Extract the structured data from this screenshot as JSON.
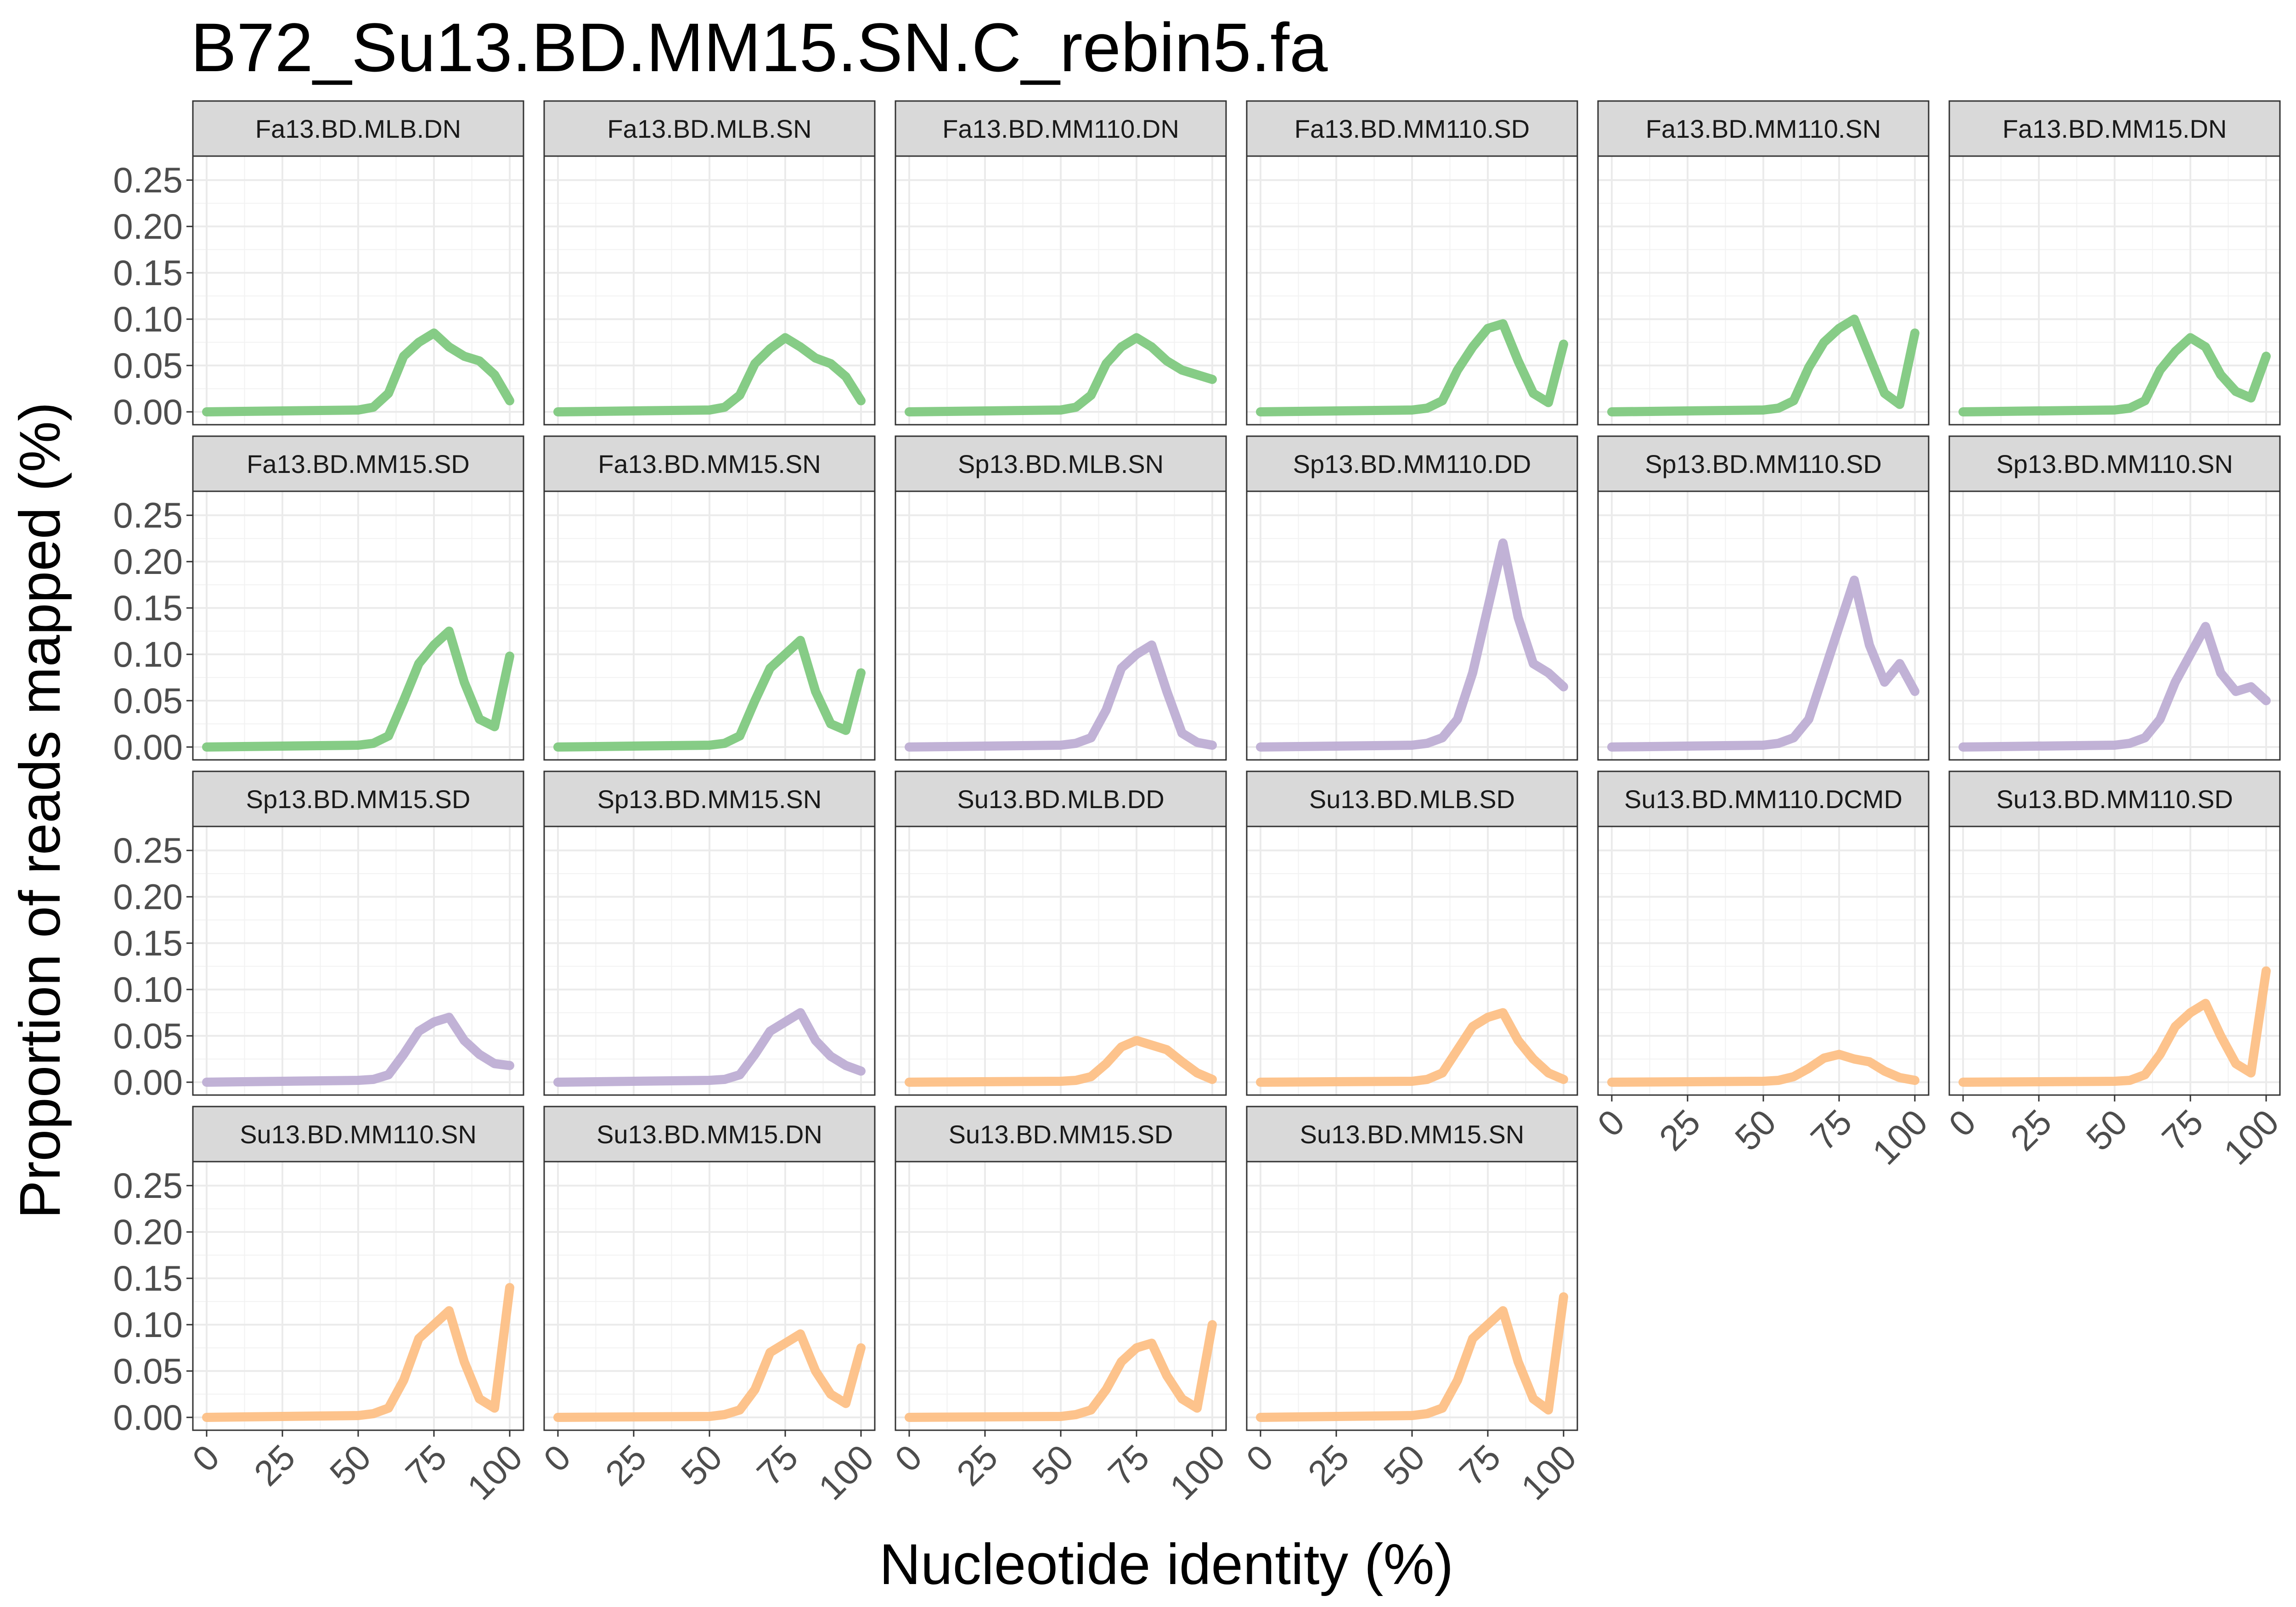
{
  "chart_data": {
    "type": "line",
    "title": "B72_Su13.BD.MM15.SN.C_rebin5.fa",
    "xlabel": "Nucleotide identity (%)",
    "ylabel": "Proportion of reads mapped (%)",
    "xlim": [
      0,
      100
    ],
    "ylim": [
      0,
      0.25
    ],
    "x_ticks": [
      "0",
      "25",
      "50",
      "75",
      "100"
    ],
    "y_ticks": [
      "0.00",
      "0.05",
      "0.10",
      "0.15",
      "0.20",
      "0.25"
    ],
    "grid": true,
    "legend": "none",
    "layout": "facet_wrap, 6 columns",
    "colors": {
      "Fa13": "#7fc97f",
      "Sp13": "#beaed4",
      "Su13": "#fdc086"
    },
    "x": [
      0,
      50,
      55,
      60,
      65,
      70,
      75,
      80,
      85,
      90,
      95,
      100
    ],
    "panels": [
      {
        "name": "Fa13.BD.MLB.DN",
        "group": "Fa13",
        "values": [
          0,
          0.002,
          0.005,
          0.02,
          0.06,
          0.075,
          0.085,
          0.07,
          0.06,
          0.055,
          0.04,
          0.012
        ]
      },
      {
        "name": "Fa13.BD.MLB.SN",
        "group": "Fa13",
        "values": [
          0,
          0.002,
          0.005,
          0.018,
          0.052,
          0.068,
          0.08,
          0.07,
          0.058,
          0.052,
          0.038,
          0.012
        ]
      },
      {
        "name": "Fa13.BD.MM110.DN",
        "group": "Fa13",
        "values": [
          0,
          0.002,
          0.005,
          0.018,
          0.052,
          0.07,
          0.08,
          0.07,
          0.055,
          0.045,
          0.04,
          0.035
        ]
      },
      {
        "name": "Fa13.BD.MM110.SD",
        "group": "Fa13",
        "values": [
          0,
          0.002,
          0.004,
          0.012,
          0.045,
          0.07,
          0.09,
          0.095,
          0.055,
          0.02,
          0.01,
          0.073
        ]
      },
      {
        "name": "Fa13.BD.MM110.SN",
        "group": "Fa13",
        "values": [
          0,
          0.002,
          0.004,
          0.012,
          0.048,
          0.075,
          0.09,
          0.1,
          0.06,
          0.02,
          0.008,
          0.085
        ]
      },
      {
        "name": "Fa13.BD.MM15.DN",
        "group": "Fa13",
        "values": [
          0,
          0.002,
          0.004,
          0.012,
          0.045,
          0.065,
          0.08,
          0.07,
          0.04,
          0.022,
          0.015,
          0.06
        ]
      },
      {
        "name": "Fa13.BD.MM15.SD",
        "group": "Fa13",
        "values": [
          0,
          0.002,
          0.004,
          0.012,
          0.05,
          0.09,
          0.11,
          0.125,
          0.07,
          0.03,
          0.022,
          0.098
        ]
      },
      {
        "name": "Fa13.BD.MM15.SN",
        "group": "Fa13",
        "values": [
          0,
          0.002,
          0.004,
          0.012,
          0.05,
          0.085,
          0.1,
          0.115,
          0.06,
          0.025,
          0.018,
          0.08
        ]
      },
      {
        "name": "Sp13.BD.MLB.SN",
        "group": "Sp13",
        "values": [
          0,
          0.002,
          0.004,
          0.01,
          0.04,
          0.085,
          0.1,
          0.11,
          0.06,
          0.015,
          0.005,
          0.002
        ]
      },
      {
        "name": "Sp13.BD.MM110.DD",
        "group": "Sp13",
        "values": [
          0,
          0.002,
          0.004,
          0.01,
          0.03,
          0.08,
          0.15,
          0.22,
          0.14,
          0.09,
          0.08,
          0.065
        ]
      },
      {
        "name": "Sp13.BD.MM110.SD",
        "group": "Sp13",
        "values": [
          0,
          0.002,
          0.004,
          0.01,
          0.03,
          0.08,
          0.13,
          0.18,
          0.11,
          0.07,
          0.09,
          0.06
        ]
      },
      {
        "name": "Sp13.BD.MM110.SN",
        "group": "Sp13",
        "values": [
          0,
          0.002,
          0.004,
          0.01,
          0.03,
          0.07,
          0.1,
          0.13,
          0.08,
          0.06,
          0.065,
          0.05
        ]
      },
      {
        "name": "Sp13.BD.MM15.SD",
        "group": "Sp13",
        "values": [
          0,
          0.002,
          0.003,
          0.008,
          0.03,
          0.055,
          0.065,
          0.07,
          0.045,
          0.03,
          0.02,
          0.018
        ]
      },
      {
        "name": "Sp13.BD.MM15.SN",
        "group": "Sp13",
        "values": [
          0,
          0.002,
          0.003,
          0.008,
          0.03,
          0.055,
          0.065,
          0.075,
          0.045,
          0.028,
          0.018,
          0.012
        ]
      },
      {
        "name": "Su13.BD.MLB.DD",
        "group": "Su13",
        "values": [
          0,
          0.001,
          0.002,
          0.006,
          0.02,
          0.038,
          0.045,
          0.04,
          0.035,
          0.022,
          0.01,
          0.003
        ]
      },
      {
        "name": "Su13.BD.MLB.SD",
        "group": "Su13",
        "values": [
          0,
          0.001,
          0.003,
          0.01,
          0.035,
          0.06,
          0.07,
          0.075,
          0.045,
          0.025,
          0.01,
          0.003
        ]
      },
      {
        "name": "Su13.BD.MM110.DCMD",
        "group": "Su13",
        "values": [
          0,
          0.001,
          0.002,
          0.006,
          0.015,
          0.026,
          0.03,
          0.025,
          0.022,
          0.012,
          0.005,
          0.002
        ]
      },
      {
        "name": "Su13.BD.MM110.SD",
        "group": "Su13",
        "values": [
          0,
          0.001,
          0.002,
          0.008,
          0.03,
          0.06,
          0.075,
          0.085,
          0.05,
          0.02,
          0.01,
          0.12
        ]
      },
      {
        "name": "Su13.BD.MM110.SN",
        "group": "Su13",
        "values": [
          0,
          0.002,
          0.004,
          0.01,
          0.04,
          0.085,
          0.1,
          0.115,
          0.06,
          0.02,
          0.01,
          0.14
        ]
      },
      {
        "name": "Su13.BD.MM15.DN",
        "group": "Su13",
        "values": [
          0,
          0.001,
          0.003,
          0.008,
          0.03,
          0.07,
          0.08,
          0.09,
          0.05,
          0.025,
          0.015,
          0.075
        ]
      },
      {
        "name": "Su13.BD.MM15.SD",
        "group": "Su13",
        "values": [
          0,
          0.001,
          0.003,
          0.008,
          0.03,
          0.06,
          0.075,
          0.08,
          0.045,
          0.02,
          0.01,
          0.1
        ]
      },
      {
        "name": "Su13.BD.MM15.SN",
        "group": "Su13",
        "values": [
          0,
          0.002,
          0.004,
          0.01,
          0.04,
          0.085,
          0.1,
          0.115,
          0.06,
          0.02,
          0.008,
          0.13
        ]
      }
    ]
  }
}
